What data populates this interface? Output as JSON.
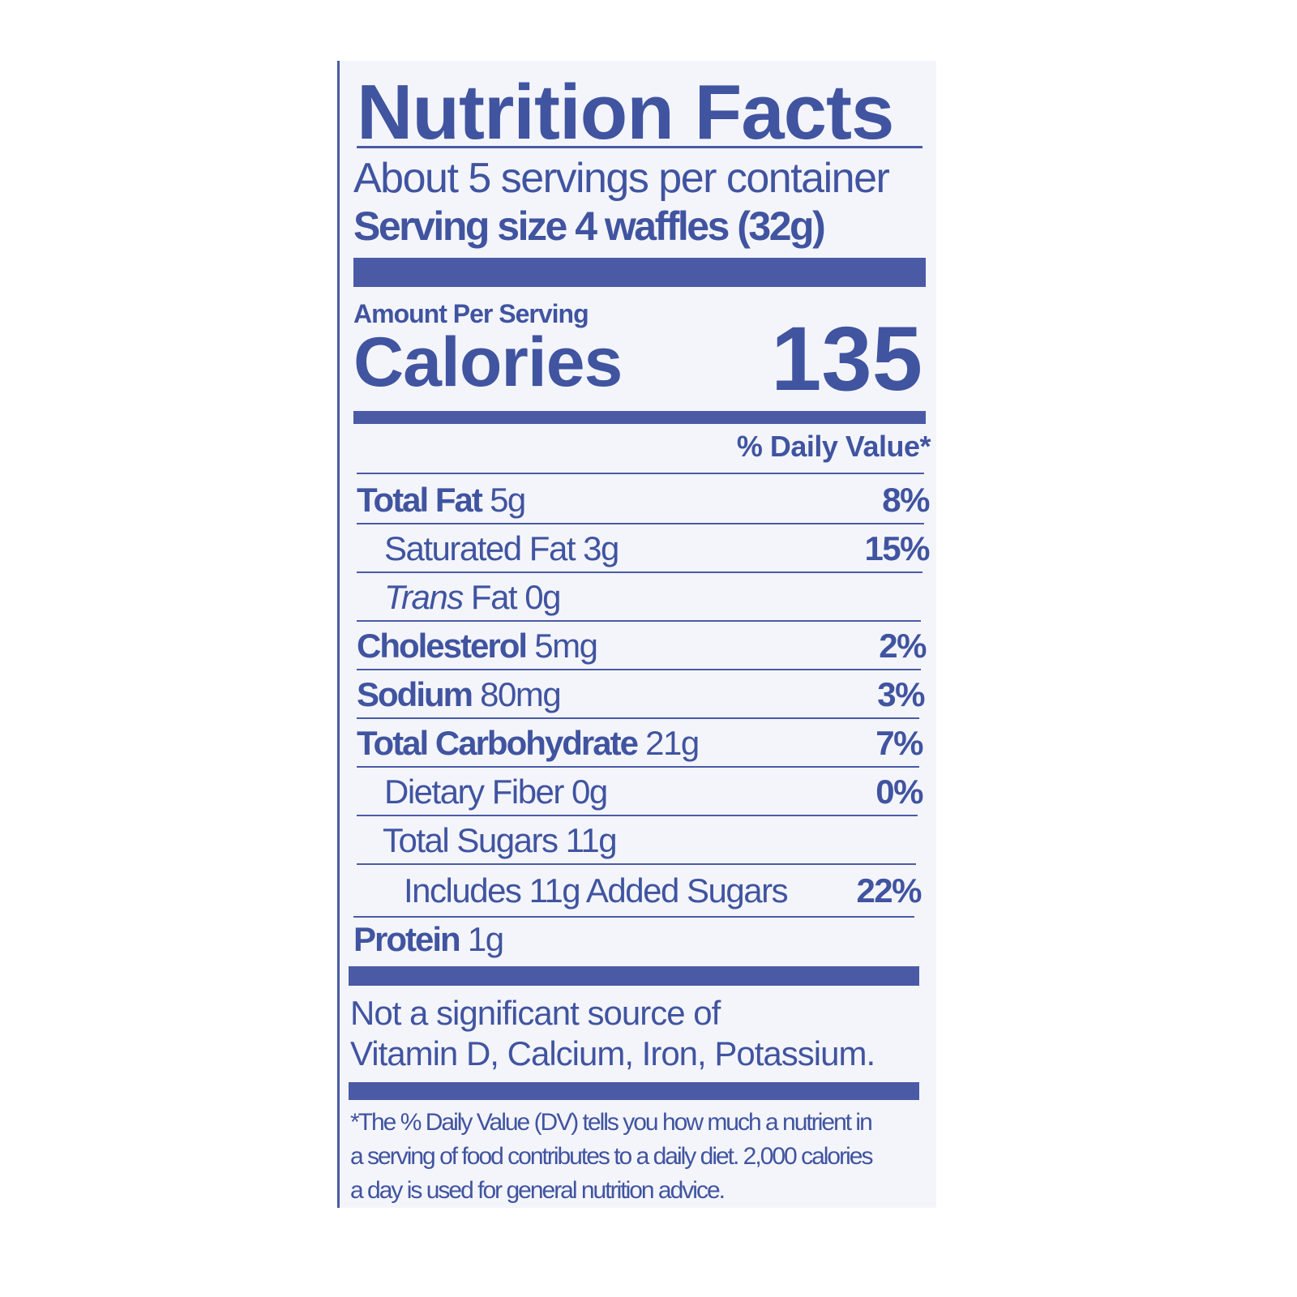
{
  "label": {
    "title": "Nutrition Facts",
    "servings_per_container": "About 5 servings per container",
    "serving_size": "Serving size 4 waffles (32g)",
    "amount_per_serving": "Amount Per Serving",
    "calories_label": "Calories",
    "calories_value": "135",
    "daily_value_header": "% Daily Value*",
    "nutrients": [
      {
        "name": "Total Fat",
        "amount": "5g",
        "dv": "8%"
      },
      {
        "name": "Saturated Fat 3g",
        "amount": "",
        "dv": "15%"
      },
      {
        "name_italic": "Trans",
        "name": "Fat 0g",
        "amount": "",
        "dv": ""
      },
      {
        "name": "Cholesterol",
        "amount": "5mg",
        "dv": "2%"
      },
      {
        "name": "Sodium",
        "amount": "80mg",
        "dv": "3%"
      },
      {
        "name": "Total Carbohydrate",
        "amount": "21g",
        "dv": "7%"
      },
      {
        "name": "Dietary Fiber 0g",
        "amount": "",
        "dv": "0%"
      },
      {
        "name": "Total Sugars 11g",
        "amount": "",
        "dv": ""
      },
      {
        "name": "Includes 11g Added Sugars",
        "amount": "",
        "dv": "22%"
      },
      {
        "name": "Protein",
        "amount": "1g",
        "dv": ""
      }
    ],
    "not_significant_line1": "Not a significant source of",
    "not_significant_line2": "Vitamin D, Calcium, Iron, Potassium.",
    "footnote_line1": "*The % Daily Value (DV) tells you how much a nutrient in",
    "footnote_line2": "a serving of food contributes to a daily diet. 2,000 calories",
    "footnote_line3": "a day is used for general nutrition advice.",
    "ink_color": "#4054a0",
    "background_color": "#f4f5fb"
  }
}
